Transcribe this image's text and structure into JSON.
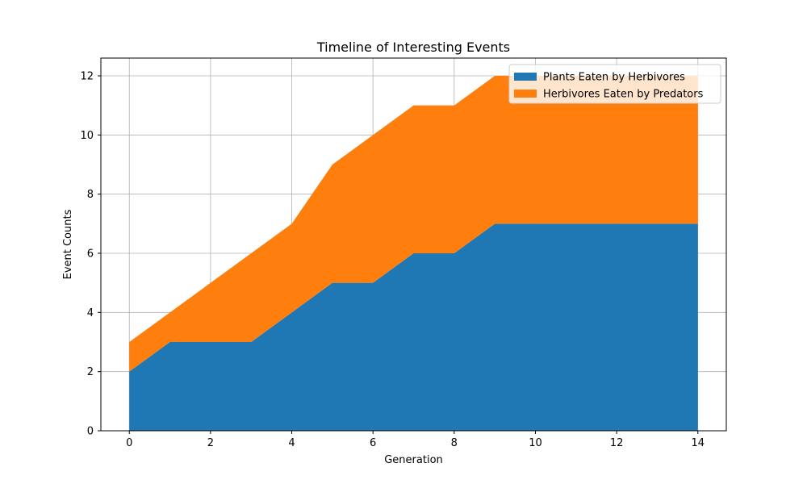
{
  "chart_data": {
    "type": "area",
    "stacked": true,
    "title": "Timeline of Interesting Events",
    "xlabel": "Generation",
    "ylabel": "Event Counts",
    "x": [
      0,
      1,
      2,
      3,
      4,
      5,
      6,
      7,
      8,
      9,
      10,
      11,
      12,
      13,
      14
    ],
    "series": [
      {
        "name": "Plants Eaten by Herbivores",
        "color": "#1f77b4",
        "values": [
          2,
          3,
          3,
          3,
          4,
          5,
          5,
          6,
          6,
          7,
          7,
          7,
          7,
          7,
          7
        ]
      },
      {
        "name": "Herbivores Eaten by Predators",
        "color": "#ff7f0e",
        "values": [
          1,
          1,
          2,
          3,
          3,
          4,
          5,
          5,
          5,
          5,
          5,
          5,
          5,
          5,
          5
        ]
      }
    ],
    "xlim": [
      -0.7,
      14.7
    ],
    "ylim": [
      0,
      12.6
    ],
    "xticks": [
      0,
      2,
      4,
      6,
      8,
      10,
      12,
      14
    ],
    "yticks": [
      0,
      2,
      4,
      6,
      8,
      10,
      12
    ],
    "grid": true,
    "legend_position": "top-right"
  }
}
